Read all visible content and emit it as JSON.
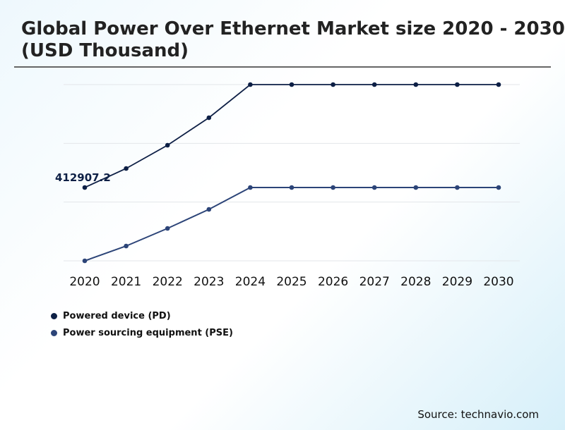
{
  "chart_data": {
    "type": "line",
    "title": "Global Power Over Ethernet Market size 2020 - 2030 (USD Thousand)",
    "categories": [
      "2020",
      "2021",
      "2022",
      "2023",
      "2024",
      "2025",
      "2026",
      "2027",
      "2028",
      "2029",
      "2030"
    ],
    "series": [
      {
        "name": "Powered device (PD)",
        "color": "#0d1f45",
        "values": [
          412907.2,
          520100,
          651100,
          805900,
          992500,
          992500,
          992500,
          992500,
          992500,
          992500,
          992500
        ]
      },
      {
        "name": "Power sourcing equipment (PSE)",
        "color": "#2c4478",
        "values": [
          0,
          83400,
          182600,
          289800,
          412900,
          412900,
          412900,
          412900,
          412900,
          412900,
          412900
        ]
      }
    ],
    "annotations": [
      {
        "label": "412907.2",
        "series": 0,
        "category": "2020"
      }
    ],
    "ylim": [
      0,
      992500
    ],
    "yaxis_visible": false,
    "grid": true,
    "legend_position": "bottom-left"
  },
  "source": "Source: technavio.com"
}
